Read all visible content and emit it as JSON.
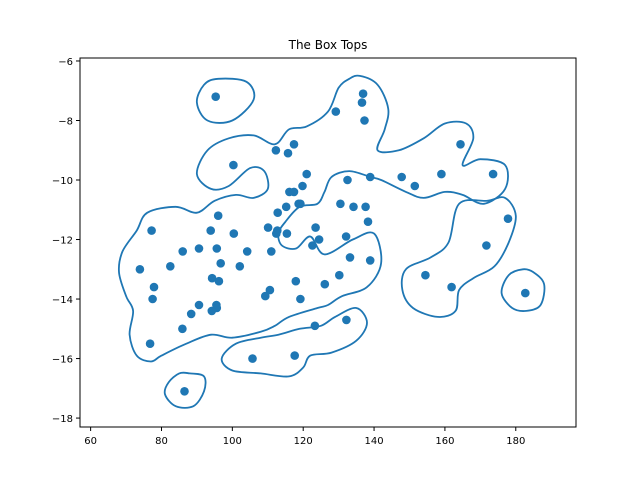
{
  "chart_data": {
    "type": "scatter",
    "title": "The Box Tops",
    "xlabel": "",
    "ylabel": "",
    "xlim": [
      57,
      197
    ],
    "ylim": [
      -18.3,
      -5.9
    ],
    "xticks": [
      60,
      80,
      100,
      120,
      140,
      160,
      180
    ],
    "yticks": [
      -18,
      -16,
      -14,
      -12,
      -10,
      -8,
      -6
    ],
    "xtick_labels": [
      "60",
      "80",
      "100",
      "120",
      "140",
      "160",
      "180"
    ],
    "ytick_labels": [
      "−18",
      "−16",
      "−14",
      "−12",
      "−10",
      "−8",
      "−6"
    ],
    "grid": false,
    "series": [
      {
        "marker_color": "#1f77b4",
        "points": [
          [
            95.3,
            -7.2
          ],
          [
            129.2,
            -7.7
          ],
          [
            136.9,
            -7.1
          ],
          [
            136.6,
            -7.4
          ],
          [
            137.3,
            -8.0
          ],
          [
            100.3,
            -9.5
          ],
          [
            112.3,
            -9.0
          ],
          [
            115.7,
            -9.1
          ],
          [
            117.4,
            -8.8
          ],
          [
            164.4,
            -8.8
          ],
          [
            121.0,
            -9.8
          ],
          [
            119.8,
            -10.2
          ],
          [
            116.1,
            -10.4
          ],
          [
            117.4,
            -10.4
          ],
          [
            132.5,
            -10.0
          ],
          [
            138.9,
            -9.9
          ],
          [
            147.8,
            -9.9
          ],
          [
            151.5,
            -10.2
          ],
          [
            159.0,
            -9.8
          ],
          [
            173.6,
            -9.8
          ],
          [
            130.5,
            -10.8
          ],
          [
            134.2,
            -10.9
          ],
          [
            137.6,
            -10.9
          ],
          [
            138.3,
            -11.4
          ],
          [
            115.2,
            -10.9
          ],
          [
            118.7,
            -10.8
          ],
          [
            119.2,
            -10.8
          ],
          [
            112.8,
            -11.1
          ],
          [
            96.0,
            -11.2
          ],
          [
            77.2,
            -11.7
          ],
          [
            100.4,
            -11.8
          ],
          [
            93.9,
            -11.7
          ],
          [
            110.1,
            -11.6
          ],
          [
            112.7,
            -11.7
          ],
          [
            112.4,
            -11.8
          ],
          [
            115.4,
            -11.8
          ],
          [
            123.5,
            -11.6
          ],
          [
            124.5,
            -12.0
          ],
          [
            122.6,
            -12.2
          ],
          [
            132.1,
            -11.9
          ],
          [
            177.8,
            -11.3
          ],
          [
            171.7,
            -12.2
          ],
          [
            86.0,
            -12.4
          ],
          [
            90.6,
            -12.3
          ],
          [
            95.6,
            -12.3
          ],
          [
            104.2,
            -12.4
          ],
          [
            111.0,
            -12.4
          ],
          [
            133.2,
            -12.6
          ],
          [
            138.9,
            -12.7
          ],
          [
            73.9,
            -13.0
          ],
          [
            82.5,
            -12.9
          ],
          [
            96.7,
            -12.8
          ],
          [
            102.1,
            -12.9
          ],
          [
            94.3,
            -13.3
          ],
          [
            96.2,
            -13.4
          ],
          [
            117.9,
            -13.4
          ],
          [
            126.1,
            -13.5
          ],
          [
            130.2,
            -13.2
          ],
          [
            154.5,
            -13.2
          ],
          [
            161.9,
            -13.6
          ],
          [
            182.7,
            -13.8
          ],
          [
            77.9,
            -13.6
          ],
          [
            77.5,
            -14.0
          ],
          [
            90.6,
            -14.2
          ],
          [
            95.5,
            -14.2
          ],
          [
            95.6,
            -14.3
          ],
          [
            94.2,
            -14.4
          ],
          [
            109.3,
            -13.9
          ],
          [
            110.6,
            -13.7
          ],
          [
            119.2,
            -14.0
          ],
          [
            88.4,
            -14.5
          ],
          [
            85.9,
            -15.0
          ],
          [
            123.3,
            -14.9
          ],
          [
            132.2,
            -14.7
          ],
          [
            76.8,
            -15.5
          ],
          [
            105.7,
            -16.0
          ],
          [
            117.6,
            -15.9
          ],
          [
            86.5,
            -17.1
          ]
        ]
      }
    ],
    "contour_color": "#1f77b4",
    "contours": [
      [
        [
          96,
          -6.6
        ],
        [
          104,
          -6.7
        ],
        [
          106,
          -7.3
        ],
        [
          100,
          -8.0
        ],
        [
          93,
          -8.0
        ],
        [
          90,
          -7.4
        ],
        [
          92,
          -6.8
        ]
      ],
      [
        [
          136,
          -6.5
        ],
        [
          141,
          -6.8
        ],
        [
          144,
          -7.6
        ],
        [
          143,
          -8.3
        ],
        [
          141,
          -9.0
        ],
        [
          147,
          -9.0
        ],
        [
          154,
          -8.6
        ],
        [
          160,
          -8.1
        ],
        [
          166,
          -8.1
        ],
        [
          168,
          -8.6
        ],
        [
          165,
          -9.5
        ],
        [
          170,
          -9.3
        ],
        [
          177,
          -9.5
        ],
        [
          177,
          -10.3
        ],
        [
          171,
          -10.8
        ],
        [
          165,
          -10.5
        ],
        [
          160,
          -10.4
        ],
        [
          154,
          -10.6
        ],
        [
          149,
          -10.4
        ],
        [
          142,
          -10.0
        ],
        [
          139,
          -9.9
        ],
        [
          133,
          -9.7
        ],
        [
          128,
          -9.9
        ],
        [
          126,
          -10.4
        ],
        [
          124,
          -10.8
        ],
        [
          119,
          -10.9
        ],
        [
          115,
          -11.4
        ],
        [
          113,
          -11.8
        ],
        [
          114,
          -12.2
        ],
        [
          118,
          -12.3
        ],
        [
          122,
          -11.9
        ],
        [
          126,
          -12.5
        ],
        [
          134,
          -12.0
        ],
        [
          140,
          -11.8
        ],
        [
          142,
          -12.8
        ],
        [
          138,
          -13.6
        ],
        [
          131,
          -13.9
        ],
        [
          127,
          -14.2
        ],
        [
          124,
          -14.3
        ],
        [
          116,
          -14.6
        ],
        [
          112,
          -14.9
        ],
        [
          108,
          -15.1
        ],
        [
          100,
          -15.3
        ],
        [
          94,
          -15.2
        ],
        [
          87,
          -15.5
        ],
        [
          80,
          -15.9
        ],
        [
          77,
          -16.1
        ],
        [
          73,
          -15.9
        ],
        [
          71,
          -15.2
        ],
        [
          72,
          -14.4
        ],
        [
          70,
          -13.9
        ],
        [
          68,
          -13.1
        ],
        [
          69,
          -12.4
        ],
        [
          73,
          -11.7
        ],
        [
          76,
          -11.1
        ],
        [
          84,
          -10.9
        ],
        [
          90,
          -11.1
        ],
        [
          95,
          -10.7
        ],
        [
          101,
          -10.5
        ],
        [
          106,
          -10.6
        ],
        [
          110,
          -10.3
        ],
        [
          109,
          -9.7
        ],
        [
          105,
          -9.6
        ],
        [
          99,
          -10.2
        ],
        [
          94,
          -10.3
        ],
        [
          90,
          -9.8
        ],
        [
          93,
          -9.0
        ],
        [
          99,
          -8.6
        ],
        [
          106,
          -8.5
        ],
        [
          112,
          -8.8
        ],
        [
          116,
          -8.3
        ],
        [
          121,
          -8.2
        ],
        [
          127,
          -7.7
        ],
        [
          130,
          -6.9
        ],
        [
          133,
          -6.6
        ]
      ],
      [
        [
          113,
          -15.2
        ],
        [
          119,
          -15.0
        ],
        [
          125,
          -14.9
        ],
        [
          129,
          -14.6
        ],
        [
          135,
          -14.3
        ],
        [
          138,
          -14.8
        ],
        [
          135,
          -15.4
        ],
        [
          128,
          -15.8
        ],
        [
          122,
          -15.9
        ],
        [
          120,
          -16.3
        ],
        [
          116,
          -16.6
        ],
        [
          108,
          -16.5
        ],
        [
          100,
          -16.4
        ],
        [
          97,
          -16.0
        ],
        [
          101,
          -15.5
        ],
        [
          108,
          -15.3
        ]
      ],
      [
        [
          164,
          -10.8
        ],
        [
          172,
          -10.7
        ],
        [
          177,
          -10.6
        ],
        [
          180,
          -11.2
        ],
        [
          178,
          -12.1
        ],
        [
          174,
          -12.9
        ],
        [
          168,
          -13.3
        ],
        [
          164,
          -13.7
        ],
        [
          163,
          -14.4
        ],
        [
          158,
          -14.6
        ],
        [
          151,
          -14.3
        ],
        [
          148,
          -13.7
        ],
        [
          149,
          -13.0
        ],
        [
          156,
          -12.6
        ],
        [
          161,
          -12.1
        ]
      ],
      [
        [
          182,
          -13.0
        ],
        [
          185,
          -13.1
        ],
        [
          188,
          -13.5
        ],
        [
          187,
          -14.2
        ],
        [
          183,
          -14.4
        ],
        [
          179,
          -14.3
        ],
        [
          176,
          -13.8
        ],
        [
          178,
          -13.2
        ]
      ],
      [
        [
          88,
          -16.5
        ],
        [
          92,
          -16.6
        ],
        [
          92,
          -17.1
        ],
        [
          89,
          -17.6
        ],
        [
          84,
          -17.6
        ],
        [
          81,
          -17.2
        ],
        [
          82,
          -16.8
        ],
        [
          85,
          -16.5
        ]
      ]
    ]
  }
}
